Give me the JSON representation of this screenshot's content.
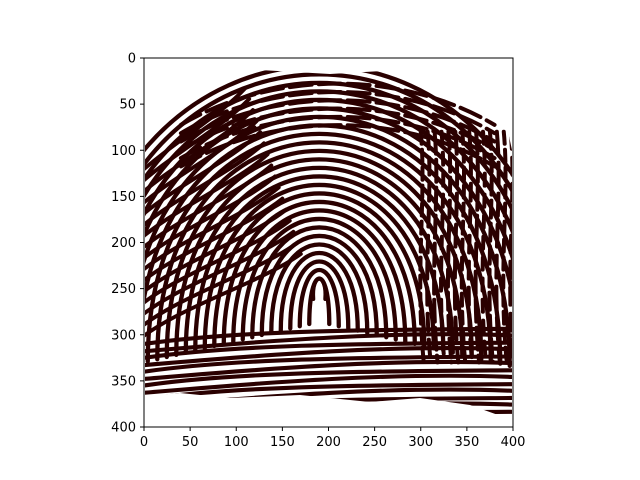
{
  "image": {
    "description_icon": "fingerprint-ridge-image",
    "ridge_color": "#2a0000",
    "background_color": "#ffffff",
    "x_range": [
      0,
      400
    ],
    "y_range": [
      0,
      400
    ],
    "y_inverted": true
  },
  "axes": {
    "x_ticks": [
      "0",
      "50",
      "100",
      "150",
      "200",
      "250",
      "300",
      "350",
      "400"
    ],
    "y_ticks": [
      "0",
      "50",
      "100",
      "150",
      "200",
      "250",
      "300",
      "350",
      "400"
    ]
  }
}
